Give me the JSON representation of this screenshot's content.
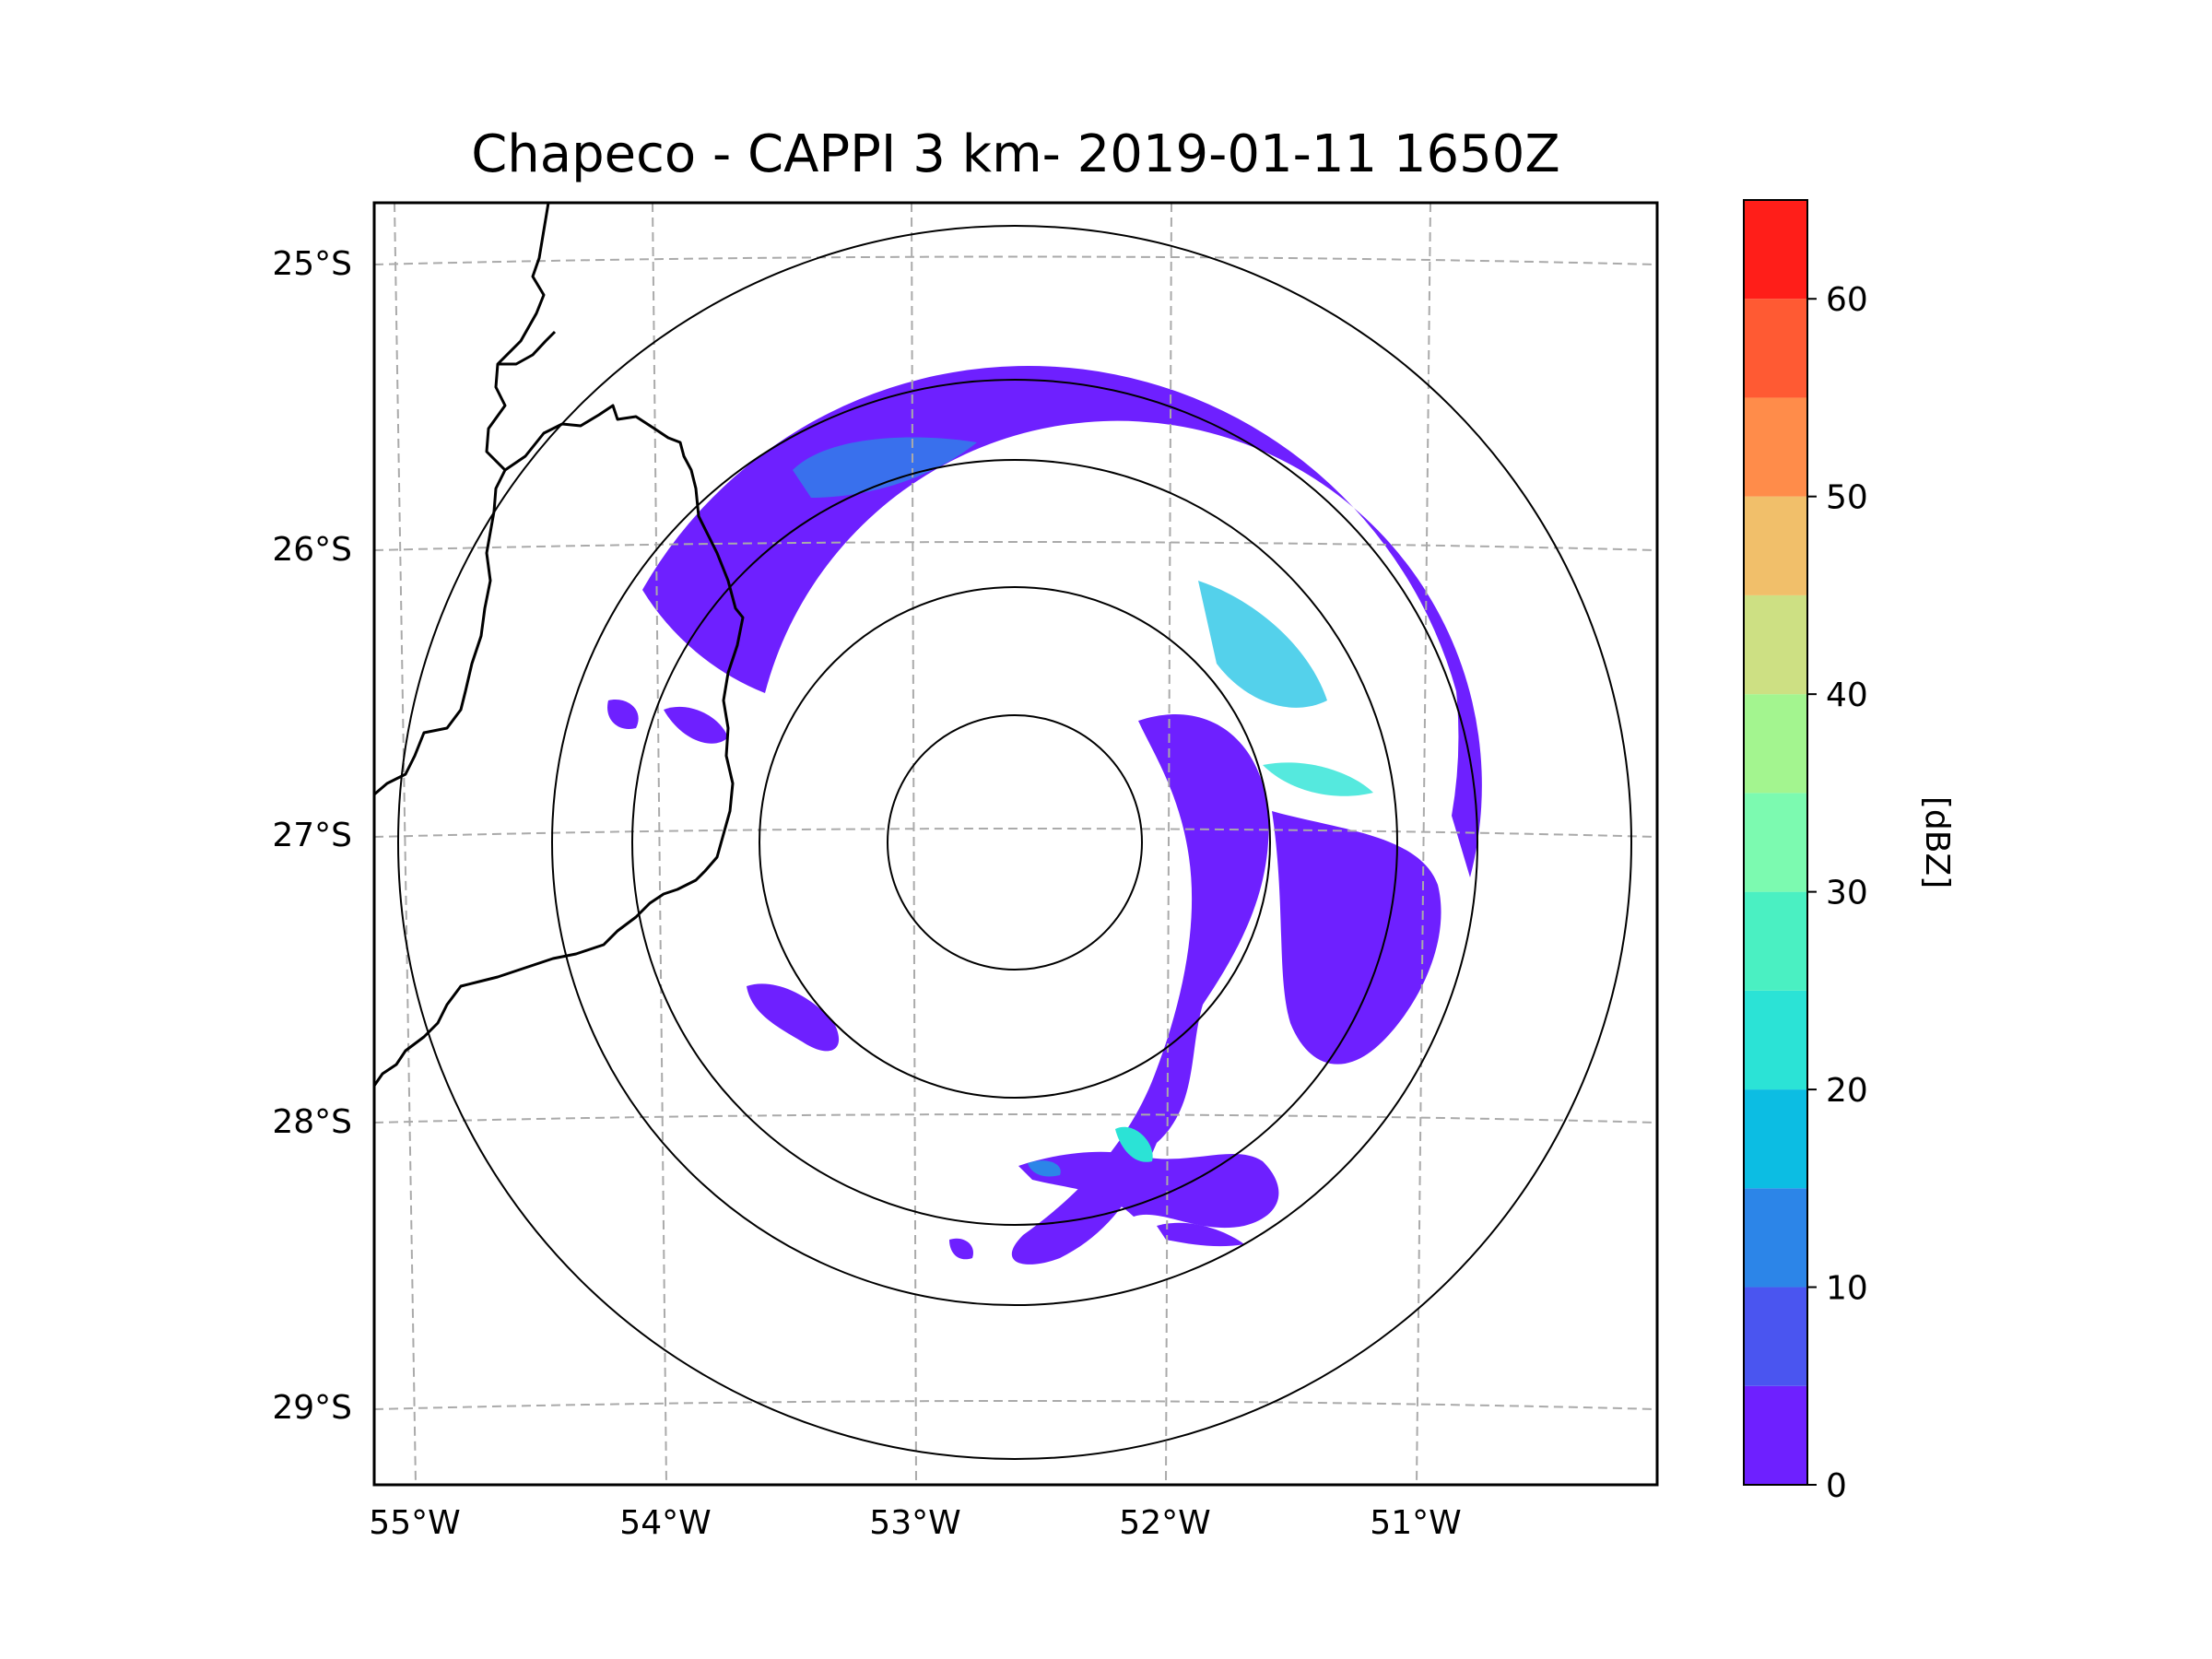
{
  "figure": {
    "title": "Chapeco - CAPPI 3 km- 2019-01-11 1650Z"
  },
  "map": {
    "lon_range": [
      -55.2,
      -50.1
    ],
    "lat_range": [
      -29.3,
      -24.8
    ],
    "lon_ticks": [
      {
        "value": -55,
        "label": "55°W"
      },
      {
        "value": -54,
        "label": "54°W"
      },
      {
        "value": -53,
        "label": "53°W"
      },
      {
        "value": -52,
        "label": "52°W"
      },
      {
        "value": -51,
        "label": "51°W"
      }
    ],
    "lat_ticks": [
      {
        "value": -25,
        "label": "25°S"
      },
      {
        "value": -26,
        "label": "26°S"
      },
      {
        "value": -27,
        "label": "27°S"
      },
      {
        "value": -28,
        "label": "28°S"
      },
      {
        "value": -29,
        "label": "29°S"
      }
    ],
    "radar_center": {
      "lon": -52.6,
      "lat": -27.03
    },
    "range_rings_km": [
      50,
      100,
      150,
      200,
      250
    ],
    "gridline_color": "#aaaaaa",
    "coast_color": "#000000"
  },
  "colorbar": {
    "label": "[dBZ]",
    "ticks": [
      {
        "value": 0,
        "label": "0"
      },
      {
        "value": 10,
        "label": "10"
      },
      {
        "value": 20,
        "label": "20"
      },
      {
        "value": 30,
        "label": "30"
      },
      {
        "value": 40,
        "label": "40"
      },
      {
        "value": 50,
        "label": "50"
      },
      {
        "value": 60,
        "label": "60"
      }
    ],
    "bins": [
      {
        "min": 0,
        "max": 5,
        "color": "#6e20ff"
      },
      {
        "min": 5,
        "max": 10,
        "color": "#4a55f0"
      },
      {
        "min": 10,
        "max": 15,
        "color": "#2c85e8"
      },
      {
        "min": 15,
        "max": 20,
        "color": "#0cbde3"
      },
      {
        "min": 20,
        "max": 25,
        "color": "#2be3d6"
      },
      {
        "min": 25,
        "max": 30,
        "color": "#4af0c2"
      },
      {
        "min": 30,
        "max": 35,
        "color": "#7cfab0"
      },
      {
        "min": 35,
        "max": 40,
        "color": "#a3f58f"
      },
      {
        "min": 40,
        "max": 45,
        "color": "#cde083"
      },
      {
        "min": 45,
        "max": 50,
        "color": "#f1bf6a"
      },
      {
        "min": 50,
        "max": 55,
        "color": "#ff8c4a"
      },
      {
        "min": 55,
        "max": 60,
        "color": "#ff5a33"
      },
      {
        "min": 60,
        "max": 65,
        "color": "#ff1e19"
      }
    ]
  }
}
